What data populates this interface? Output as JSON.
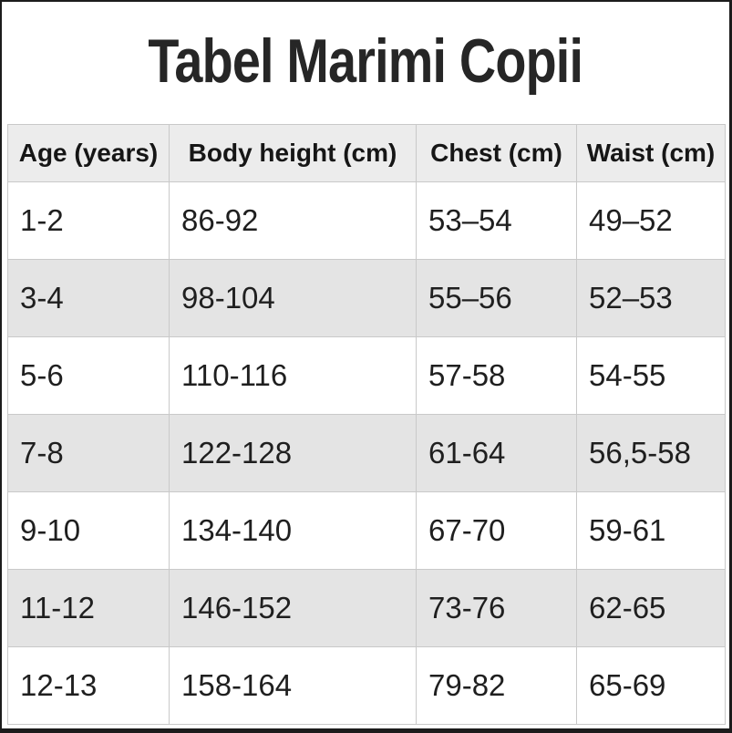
{
  "page": {
    "title": "Tabel Marimi Copii"
  },
  "colors": {
    "frame": "#1c1c1c",
    "table_border": "#c9c9c9",
    "header_bg": "#ececec",
    "stripe_bg": "#e4e4e4",
    "text": "#1f1f1f"
  },
  "table": {
    "headers": [
      "Age (years)",
      "Body height (cm)",
      "Chest (cm)",
      "Waist (cm)"
    ],
    "rows": [
      [
        "1-2",
        "86-92",
        "53–54",
        "49–52"
      ],
      [
        "3-4",
        "98-104",
        "55–56",
        "52–53"
      ],
      [
        "5-6",
        "110-116",
        "57-58",
        "54-55"
      ],
      [
        "7-8",
        "122-128",
        "61-64",
        "56,5-58"
      ],
      [
        "9-10",
        "134-140",
        "67-70",
        "59-61"
      ],
      [
        "11-12",
        "146-152",
        "73-76",
        "62-65"
      ],
      [
        "12-13",
        "158-164",
        "79-82",
        "65-69"
      ]
    ]
  },
  "chart_data": {
    "type": "table",
    "title": "Tabel Marimi Copii",
    "columns": [
      "Age (years)",
      "Body height (cm)",
      "Chest (cm)",
      "Waist (cm)"
    ],
    "rows": [
      {
        "age_years": "1-2",
        "body_height_cm": "86-92",
        "chest_cm": "53–54",
        "waist_cm": "49–52"
      },
      {
        "age_years": "3-4",
        "body_height_cm": "98-104",
        "chest_cm": "55–56",
        "waist_cm": "52–53"
      },
      {
        "age_years": "5-6",
        "body_height_cm": "110-116",
        "chest_cm": "57-58",
        "waist_cm": "54-55"
      },
      {
        "age_years": "7-8",
        "body_height_cm": "122-128",
        "chest_cm": "61-64",
        "waist_cm": "56,5-58"
      },
      {
        "age_years": "9-10",
        "body_height_cm": "134-140",
        "chest_cm": "67-70",
        "waist_cm": "59-61"
      },
      {
        "age_years": "11-12",
        "body_height_cm": "146-152",
        "chest_cm": "73-76",
        "waist_cm": "62-65"
      },
      {
        "age_years": "12-13",
        "body_height_cm": "158-164",
        "chest_cm": "79-82",
        "waist_cm": "65-69"
      }
    ],
    "layout": {
      "header_row_shaded": true,
      "zebra_striping": true,
      "grid": true
    }
  }
}
